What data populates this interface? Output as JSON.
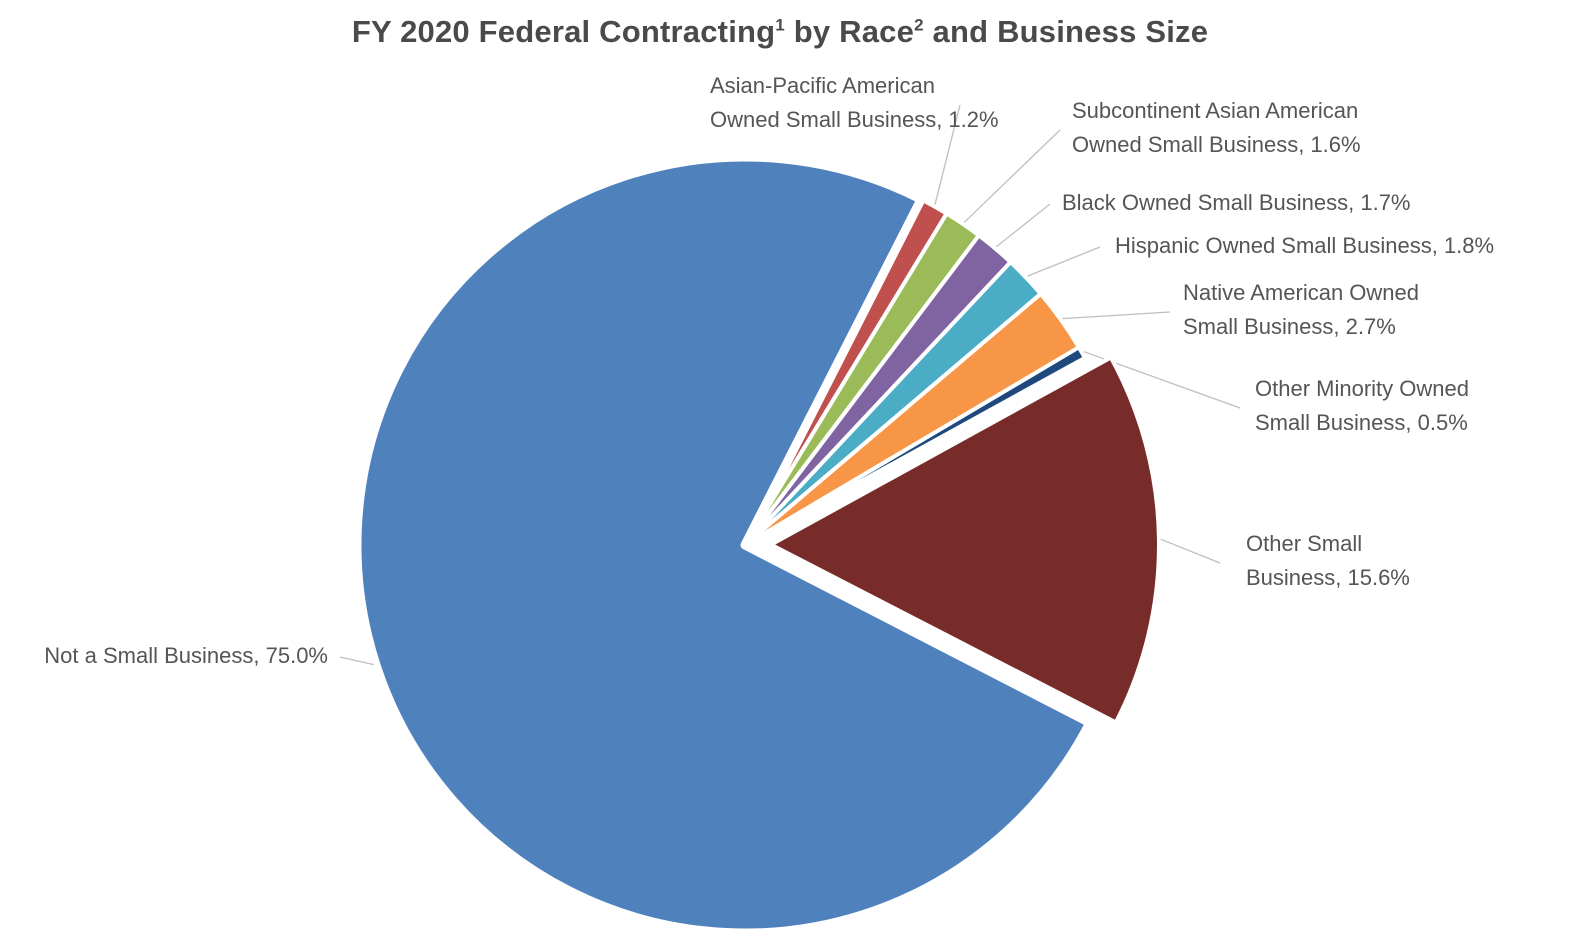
{
  "chart_data": {
    "type": "pie",
    "title": {
      "part1": "FY 2020 Federal Contracting",
      "sup1": "1",
      "part2": " by Race",
      "sup2": "2",
      "part3": " and Business Size"
    },
    "slices": [
      {
        "label": "Asian-Pacific American Owned Small Business, 1.2%",
        "lines": [
          "Asian-Pacific American",
          "Owned Small Business, 1.2%"
        ],
        "value": 1.2,
        "color": "#C0504D"
      },
      {
        "label": "Subcontinent Asian American Owned Small Business, 1.6%",
        "lines": [
          "Subcontinent Asian American",
          "Owned Small Business, 1.6%"
        ],
        "value": 1.6,
        "color": "#9BBB59"
      },
      {
        "label": "Black Owned Small Business, 1.7%",
        "lines": [
          "Black Owned Small Business, 1.7%"
        ],
        "value": 1.7,
        "color": "#8064A2"
      },
      {
        "label": "Hispanic Owned Small Business, 1.8%",
        "lines": [
          "Hispanic Owned Small Business, 1.8%"
        ],
        "value": 1.8,
        "color": "#4BACC6"
      },
      {
        "label": "Native American Owned Small Business, 2.7%",
        "lines": [
          "Native American Owned",
          "Small Business, 2.7%"
        ],
        "value": 2.7,
        "color": "#F79646"
      },
      {
        "label": "Other Minority Owned Small Business, 0.5%",
        "lines": [
          "Other Minority Owned",
          "Small Business, 0.5%"
        ],
        "value": 0.5,
        "color": "#1F497D"
      },
      {
        "label": "Other Small Business, 15.6%",
        "lines": [
          "Other Small",
          "Business, 15.6%"
        ],
        "value": 15.6,
        "color": "#772C2A"
      },
      {
        "label": "Not a Small Business, 75.0%",
        "lines": [
          "Not a Small Business, 75.0%"
        ],
        "value": 75.0,
        "color": "#4F81BD"
      }
    ],
    "legend": "none",
    "label_style": "callout lines"
  }
}
